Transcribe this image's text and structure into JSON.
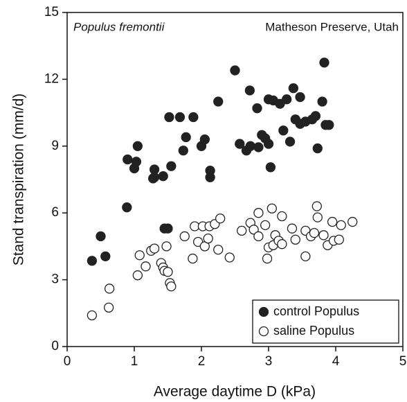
{
  "chart_data": {
    "type": "scatter",
    "annotations": [
      "Populus fremontii",
      "Matheson Preserve, Utah"
    ],
    "xlabel": "Average daytime D (kPa)",
    "ylabel": "Stand transpiration (mm/d)",
    "xlim": [
      0,
      5
    ],
    "xticks": [
      0,
      1,
      2,
      3,
      4,
      5
    ],
    "ylim": [
      0,
      15
    ],
    "yticks": [
      0,
      3,
      6,
      9,
      12,
      15
    ],
    "legend": "lower right",
    "series": [
      {
        "name": "control Populus",
        "color": "#222222",
        "fill": "#222222",
        "x": [
          0.37,
          0.5,
          0.57,
          0.89,
          0.9,
          1.0,
          1.03,
          1.05,
          1.28,
          1.3,
          1.3,
          1.43,
          1.45,
          1.5,
          1.52,
          1.55,
          1.68,
          1.73,
          1.77,
          1.88,
          2.0,
          2.05,
          2.13,
          2.13,
          2.25,
          2.5,
          2.57,
          2.67,
          2.72,
          2.73,
          2.83,
          2.85,
          2.9,
          2.95,
          3.0,
          3.0,
          3.03,
          3.07,
          3.17,
          3.22,
          3.27,
          3.32,
          3.37,
          3.4,
          3.47,
          3.47,
          3.55,
          3.65,
          3.7,
          3.73,
          3.8,
          3.83,
          3.85,
          3.9
        ],
        "y": [
          3.85,
          4.95,
          4.05,
          6.25,
          8.4,
          8.0,
          8.3,
          9.0,
          7.55,
          7.95,
          7.6,
          7.65,
          5.3,
          5.3,
          10.3,
          8.1,
          10.3,
          8.8,
          9.4,
          10.3,
          9.0,
          9.3,
          7.9,
          7.6,
          11.0,
          12.4,
          9.1,
          8.8,
          11.5,
          9.0,
          10.7,
          8.95,
          9.5,
          9.35,
          9.1,
          11.1,
          8.05,
          11.05,
          10.9,
          9.7,
          11.1,
          9.2,
          11.6,
          10.2,
          10.0,
          11.2,
          10.1,
          10.2,
          10.35,
          8.9,
          11.0,
          12.75,
          9.95,
          9.95
        ]
      },
      {
        "name": "saline Populus",
        "color": "#222222",
        "fill": "#ffffff",
        "x": [
          0.37,
          0.62,
          0.63,
          1.05,
          1.08,
          1.17,
          1.25,
          1.3,
          1.4,
          1.43,
          1.45,
          1.48,
          1.5,
          1.53,
          1.55,
          1.75,
          1.87,
          1.9,
          1.95,
          2.02,
          2.05,
          2.1,
          2.12,
          2.2,
          2.25,
          2.28,
          2.42,
          2.6,
          2.73,
          2.78,
          2.85,
          2.85,
          2.95,
          2.98,
          3.0,
          3.05,
          3.07,
          3.1,
          3.15,
          3.2,
          3.2,
          3.35,
          3.4,
          3.55,
          3.55,
          3.63,
          3.68,
          3.72,
          3.73,
          3.82,
          3.88,
          3.95,
          3.97,
          4.05,
          4.08,
          4.25
        ],
        "y": [
          1.4,
          1.75,
          2.6,
          3.2,
          4.1,
          3.6,
          4.3,
          4.4,
          3.75,
          3.55,
          3.4,
          4.5,
          3.35,
          2.85,
          2.7,
          4.95,
          3.95,
          5.4,
          4.7,
          5.4,
          4.5,
          4.85,
          5.4,
          5.5,
          4.35,
          5.75,
          4.0,
          5.2,
          5.55,
          5.25,
          6.0,
          4.95,
          5.45,
          3.95,
          4.45,
          6.2,
          4.55,
          5.0,
          4.75,
          5.85,
          4.6,
          5.3,
          4.8,
          5.2,
          4.05,
          4.95,
          5.1,
          6.3,
          5.8,
          5.0,
          4.55,
          5.6,
          4.75,
          4.8,
          5.45,
          5.6
        ]
      }
    ]
  }
}
